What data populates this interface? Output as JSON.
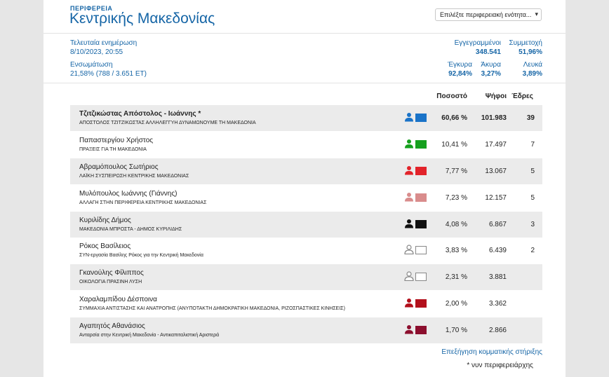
{
  "header": {
    "region_label": "Περιφερεια",
    "title": "Κεντρικής Μακεδονίας",
    "select_value": "Επιλέξτε περιφερειακή ενότητα..."
  },
  "stats": {
    "last_update_label": "Τελευταία ενημέρωση",
    "last_update_value": "8/10/2023, 20:55",
    "registered_label": "Εγγεγραμμένοι",
    "registered_value": "348.541",
    "turnout_label": "Συμμετοχή",
    "turnout_value": "51,96%",
    "counted_label": "Ενσωμάτωση",
    "counted_value": "21,58% (788 / 3.651 ΕΤ)",
    "valid_label": "Έγκυρα",
    "valid_value": "92,84%",
    "invalid_label": "Άκυρα",
    "invalid_value": "3,27%",
    "blank_label": "Λευκά",
    "blank_value": "3,89%"
  },
  "table": {
    "col_percent": "Ποσοστό",
    "col_votes": "Ψήφοι",
    "col_seats": "Έδρες",
    "rows": [
      {
        "name": "Τζιτζικώστας Απόστολος - Ιωάννης *",
        "party": "ΑΠΟΣΤΟΛΟΣ ΤΖΙΤΖΙΚΩΣΤΑΣ ΑΛΛΗΛΕΓΓΥΗ ΔΥΝΑΜΩΝΟΥΜΕ ΤΗ ΜΑΚΕΔΟΝΙΑ",
        "percent": "60,66 %",
        "votes": "101.983",
        "seats": "39",
        "color": "#1a73c8"
      },
      {
        "name": "Παπαστεργίου Χρήστος",
        "party": "ΠΡΑΞΕΙΣ ΓΙΑ ΤΗ ΜΑΚΕΔΟΝΙΑ",
        "percent": "10,41 %",
        "votes": "17.497",
        "seats": "7",
        "color": "#15a01e"
      },
      {
        "name": "Αβραμόπουλος Σωτήριος",
        "party": "ΛΑΪΚΗ ΣΥΣΠΕΙΡΩΣΗ ΚΕΝΤΡΙΚΗΣ ΜΑΚΕΔΟΝΙΑΣ",
        "percent": "7,77 %",
        "votes": "13.067",
        "seats": "5",
        "color": "#e2232a"
      },
      {
        "name": "Μυλόπουλος Ιωάννης (Γιάννης)",
        "party": "ΑΛΛΑΓΗ ΣΤΗΝ ΠΕΡΙΦΕΡΕΙΑ ΚΕΝΤΡΙΚΗΣ ΜΑΚΕΔΟΝΙΑΣ",
        "percent": "7,23 %",
        "votes": "12.157",
        "seats": "5",
        "color": "#d98c8c"
      },
      {
        "name": "Κυριλίδης Δήμος",
        "party": "ΜΑΚΕΔΟΝΙΑ ΜΠΡΟΣΤΑ - ΔΗΜΟΣ ΚΥΡΙΛΙΔΗΣ",
        "percent": "4,08 %",
        "votes": "6.867",
        "seats": "3",
        "color": "#111111"
      },
      {
        "name": "Ρόκος Βασίλειος",
        "party": "ΣΥΝ-εργασία Βασίλης Ρόκος για την Κεντρική Μακεδονία",
        "percent": "3,83 %",
        "votes": "6.439",
        "seats": "2",
        "color": "#ffffff"
      },
      {
        "name": "Γκανούλης Φίλιππος",
        "party": "ΟΙΚΟΛΟΓΙΑ ΠΡΑΣΙΝΗ ΛΥΣΗ",
        "percent": "2,31 %",
        "votes": "3.881",
        "seats": "",
        "color": "#ffffff"
      },
      {
        "name": "Χαραλαμπίδου Δέσποινα",
        "party": "ΣΥΜΜΑΧΙΑ ΑΝΤΙΣΤΑΣΗΣ ΚΑΙ ΑΝΑΤΡΟΠΗΣ (ΑΝΥΠΟΤΑΚΤΗ ΔΗΜΟΚΡΑΤΙΚΗ ΜΑΚΕΔΟΝΙΑ, ΡΙΖΟΣΠΑΣΤΙΚΕΣ ΚΙΝΗΣΕΙΣ)",
        "percent": "2,00 %",
        "votes": "3.362",
        "seats": "",
        "color": "#b3101c"
      },
      {
        "name": "Αγαπητός Αθανάσιος",
        "party": "Ανταρσία στην Κεντρική Μακεδονία - Αντικαπιταλιστική Αριστερά",
        "percent": "1,70 %",
        "votes": "2.866",
        "seats": "",
        "color": "#8c0f2e"
      }
    ]
  },
  "footer": {
    "link": "Επεξήγηση κομματικής στήριξης",
    "note": "* νυν περιφερειάρχης"
  }
}
